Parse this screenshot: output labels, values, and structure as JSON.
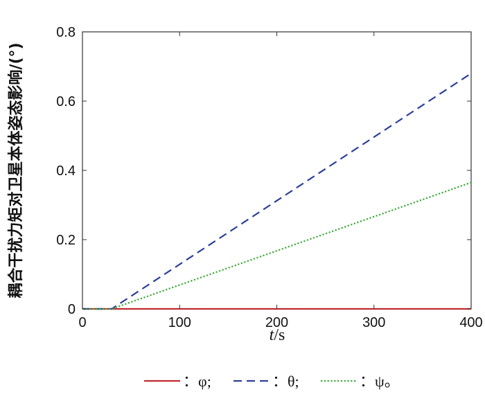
{
  "chart_data": {
    "type": "line",
    "xlabel_var": "t",
    "xlabel_unit": "/s",
    "ylabel": "耦合干扰力矩对卫星本体姿态影响/(°)",
    "xlim": [
      0,
      400
    ],
    "ylim": [
      0,
      0.8
    ],
    "xticks": [
      "0",
      "100",
      "200",
      "300",
      "400"
    ],
    "yticks": [
      "0",
      "0.2",
      "0.4",
      "0.6",
      "0.8"
    ],
    "grid": false,
    "legend_position": "bottom",
    "series": [
      {
        "name": "φ",
        "legend_text": "：φ;",
        "color": "#c0282d",
        "style": "solid",
        "x": [
          0,
          400
        ],
        "y": [
          0,
          0
        ]
      },
      {
        "name": "θ",
        "legend_text": "：θ;",
        "color": "#2a3f9a",
        "style": "dashed",
        "x": [
          0,
          30,
          400
        ],
        "y": [
          0,
          0,
          0.68
        ]
      },
      {
        "name": "ψ",
        "legend_text": "：ψ。",
        "color": "#3aaa35",
        "style": "dotted",
        "x": [
          0,
          30,
          400
        ],
        "y": [
          0,
          0,
          0.365
        ]
      }
    ]
  }
}
